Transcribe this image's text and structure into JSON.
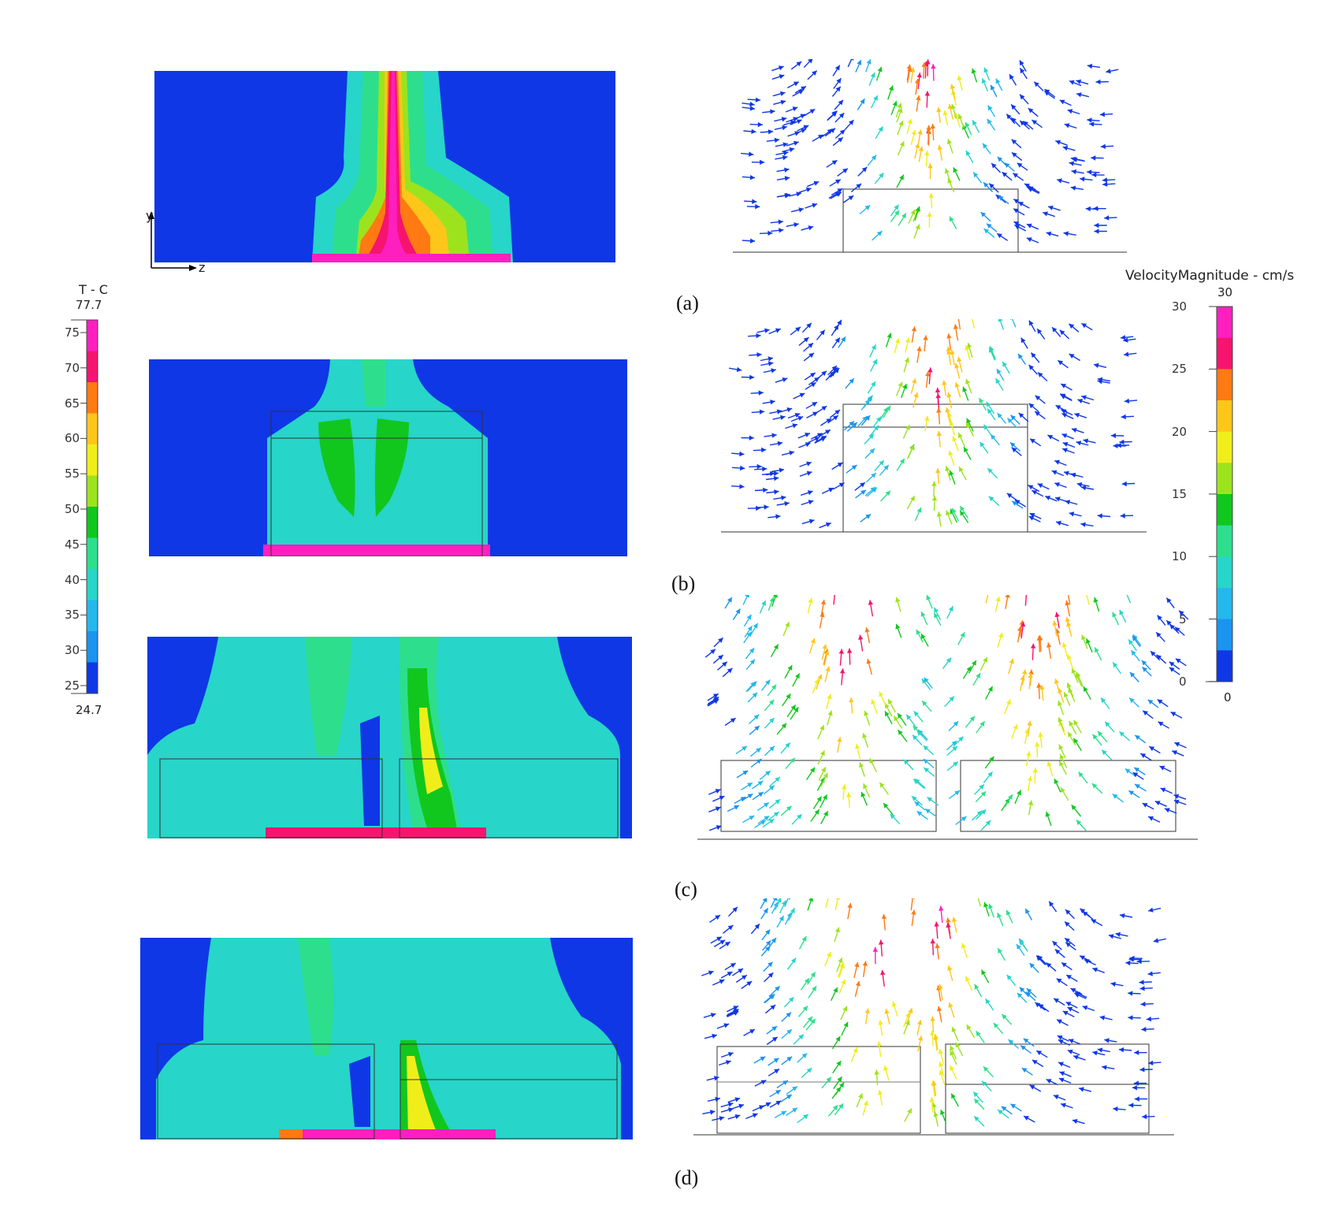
{
  "temperature_colorbar": {
    "title": "T - C",
    "max_label": "77.7",
    "min_label": "24.7",
    "ticks": [
      "75",
      "70",
      "65",
      "60",
      "55",
      "50",
      "45",
      "40",
      "35",
      "30",
      "25"
    ],
    "colors": [
      "#ff1fbf",
      "#f5146e",
      "#ff7a12",
      "#ffc61a",
      "#f0ee1a",
      "#9ce31e",
      "#11c71e",
      "#2ddf8c",
      "#27d5c9",
      "#25b8ec",
      "#1a94ef",
      "#0f37e6"
    ]
  },
  "velocity_colorbar": {
    "title": "VelocityMagnitude - cm/s",
    "max_label": "30",
    "min_label": "0",
    "ticks": [
      "30",
      "25",
      "20",
      "15",
      "10",
      "5",
      "0"
    ],
    "colors": [
      "#ff1fbf",
      "#f5146e",
      "#ff7a12",
      "#ffc61a",
      "#f0ee1a",
      "#9ce31e",
      "#11c71e",
      "#2ddf8c",
      "#27d5c9",
      "#25b8ec",
      "#1a94ef",
      "#0f37e6"
    ]
  },
  "axes": {
    "y": "y",
    "z": "z"
  },
  "panels": [
    {
      "label": "(a)"
    },
    {
      "label": "(b)"
    },
    {
      "label": "(c)"
    },
    {
      "label": "(d)"
    }
  ]
}
